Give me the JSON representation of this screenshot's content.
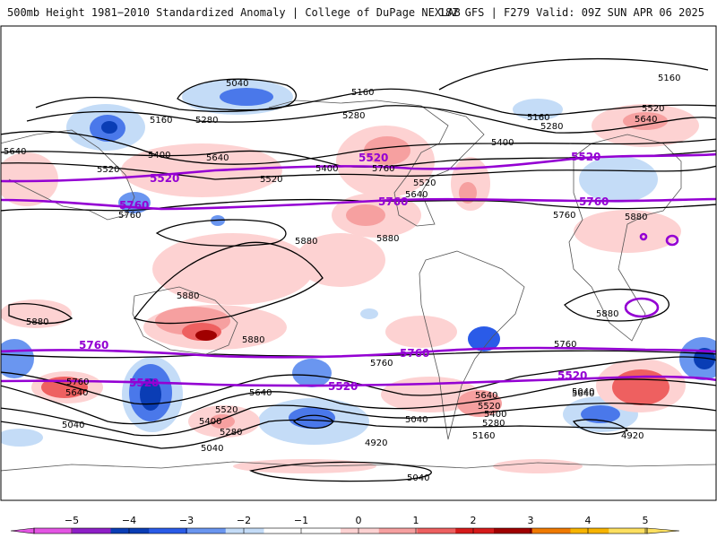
{
  "header": {
    "title_left": "500mb Height 1981−2010 Standardized Anomaly | College of DuPage NEXLAB",
    "title_right": "18Z GFS | F279 Valid: 09Z SUN APR 06 2025"
  },
  "colors": {
    "contour": "#000000",
    "highlight_contour": "#9400d3",
    "coast": "#555555"
  },
  "contour_labels": [
    {
      "text": "5040",
      "type": "black"
    },
    {
      "text": "5160",
      "type": "black"
    },
    {
      "text": "5160",
      "type": "black"
    },
    {
      "text": "5160",
      "type": "black"
    },
    {
      "text": "5160",
      "type": "black"
    },
    {
      "text": "5280",
      "type": "black"
    },
    {
      "text": "5280",
      "type": "black"
    },
    {
      "text": "5280",
      "type": "black"
    },
    {
      "text": "5640",
      "type": "black"
    },
    {
      "text": "5520",
      "type": "black"
    },
    {
      "text": "5400",
      "type": "black"
    },
    {
      "text": "5400",
      "type": "black"
    },
    {
      "text": "5400",
      "type": "black"
    },
    {
      "text": "5640",
      "type": "black"
    },
    {
      "text": "5640",
      "type": "black"
    },
    {
      "text": "5520",
      "type": "black"
    },
    {
      "text": "5520",
      "type": "black"
    },
    {
      "text": "5520",
      "type": "black"
    },
    {
      "text": "5760",
      "type": "black"
    },
    {
      "text": "5640",
      "type": "black"
    },
    {
      "text": "5760",
      "type": "black"
    },
    {
      "text": "5760",
      "type": "black"
    },
    {
      "text": "5880",
      "type": "black"
    },
    {
      "text": "5880",
      "type": "black"
    },
    {
      "text": "5880",
      "type": "black"
    },
    {
      "text": "5880",
      "type": "black"
    },
    {
      "text": "5880",
      "type": "black"
    },
    {
      "text": "5880",
      "type": "black"
    },
    {
      "text": "5880",
      "type": "black"
    },
    {
      "text": "5760",
      "type": "black"
    },
    {
      "text": "5760",
      "type": "black"
    },
    {
      "text": "5760",
      "type": "black"
    },
    {
      "text": "5640",
      "type": "black"
    },
    {
      "text": "5640",
      "type": "black"
    },
    {
      "text": "5640",
      "type": "black"
    },
    {
      "text": "5520",
      "type": "black"
    },
    {
      "text": "5400",
      "type": "black"
    },
    {
      "text": "5280",
      "type": "black"
    },
    {
      "text": "5040",
      "type": "black"
    },
    {
      "text": "5040",
      "type": "black"
    },
    {
      "text": "5040",
      "type": "black"
    },
    {
      "text": "5640",
      "type": "black"
    },
    {
      "text": "5520",
      "type": "black"
    },
    {
      "text": "5400",
      "type": "black"
    },
    {
      "text": "5280",
      "type": "black"
    },
    {
      "text": "5160",
      "type": "black"
    },
    {
      "text": "5040",
      "type": "black"
    },
    {
      "text": "4920",
      "type": "black"
    },
    {
      "text": "4920",
      "type": "black"
    },
    {
      "text": "5040",
      "type": "black"
    },
    {
      "text": "5520",
      "type": "purple"
    },
    {
      "text": "5520",
      "type": "purple"
    },
    {
      "text": "5520",
      "type": "purple"
    },
    {
      "text": "5760",
      "type": "purple"
    },
    {
      "text": "5760",
      "type": "purple"
    },
    {
      "text": "5760",
      "type": "purple"
    },
    {
      "text": "5760",
      "type": "purple"
    },
    {
      "text": "5760",
      "type": "purple"
    },
    {
      "text": "5520",
      "type": "purple"
    },
    {
      "text": "5520",
      "type": "purple"
    },
    {
      "text": "5520",
      "type": "purple"
    }
  ],
  "colorbar": {
    "ticks": [
      "−5",
      "−4",
      "−3",
      "−2",
      "−1",
      "0",
      "1",
      "2",
      "3",
      "4",
      "5"
    ],
    "bins": [
      {
        "color": "#e455e4"
      },
      {
        "color": "#8e1fc7"
      },
      {
        "color": "#0a3db5"
      },
      {
        "color": "#2a5be8"
      },
      {
        "color": "#6a96f0"
      },
      {
        "color": "#c4dcf7"
      },
      {
        "color": "#ffffff"
      },
      {
        "color": "#ffffff"
      },
      {
        "color": "#fdd2d2"
      },
      {
        "color": "#f6a0a0"
      },
      {
        "color": "#ee6060"
      },
      {
        "color": "#d61a1a"
      },
      {
        "color": "#a00000"
      },
      {
        "color": "#f07a00"
      },
      {
        "color": "#f7b400"
      },
      {
        "color": "#fde060"
      }
    ]
  }
}
